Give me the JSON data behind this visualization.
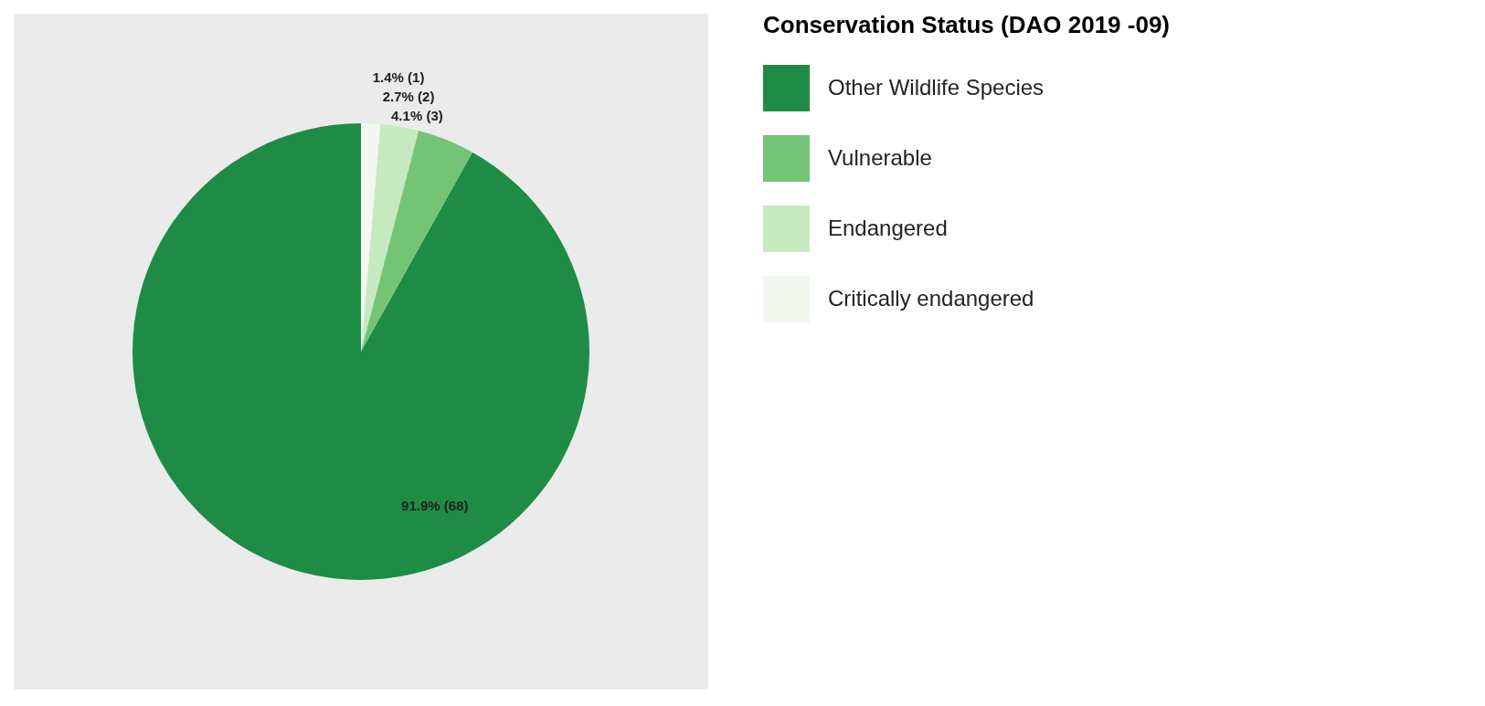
{
  "chart_data": {
    "type": "pie",
    "legend_title": "Conservation Status (DAO 2019 -09)",
    "legend": "right",
    "categories": [
      "Other Wildlife Species",
      "Vulnerable",
      "Endangered",
      "Critically endangered"
    ],
    "values": [
      68,
      3,
      2,
      1
    ],
    "value_labels": [
      "91.9% (68)",
      "4.1% (3)",
      "2.7% (2)",
      "1.4% (1)"
    ],
    "colors": [
      "#1e8c45",
      "#74c476",
      "#c7e9c0",
      "#f2f8ef"
    ]
  }
}
